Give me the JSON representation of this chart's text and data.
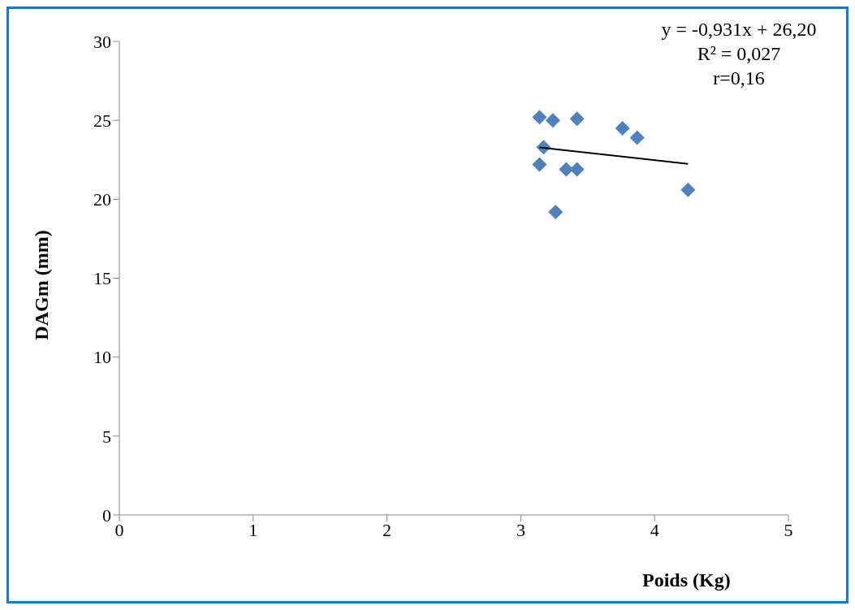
{
  "chart_data": {
    "type": "scatter",
    "xlabel": "Poids (Kg)",
    "ylabel": "DAGm (mm)",
    "xlim": [
      0,
      5
    ],
    "xticks": [
      0,
      1,
      2,
      3,
      4,
      5
    ],
    "ylim": [
      0,
      30
    ],
    "yticks": [
      0,
      5,
      10,
      15,
      20,
      25,
      30
    ],
    "grid": false,
    "legend": false,
    "marker": "diamond",
    "series": [
      {
        "color": "#4f81bd",
        "x": [
          3.14,
          3.24,
          3.42,
          3.76,
          3.87,
          3.17,
          3.14,
          3.34,
          3.42,
          4.25,
          3.26
        ],
        "values": [
          25.2,
          25.0,
          25.1,
          24.5,
          23.9,
          23.3,
          22.2,
          21.9,
          21.9,
          20.6,
          19.2
        ]
      },
      {
        "type": "line",
        "color": "#000000",
        "marker": "none",
        "x": [
          3.14,
          4.25
        ],
        "values": [
          23.28,
          22.24
        ]
      }
    ],
    "annotations": [
      "y = -0,931x + 26,20",
      "R² = 0,027",
      "r=0,16"
    ]
  }
}
